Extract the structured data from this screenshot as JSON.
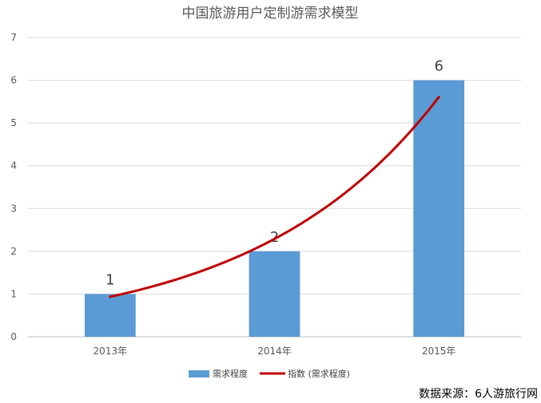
{
  "chart_data": {
    "type": "bar",
    "title": "中国旅游用户定制游需求模型",
    "categories": [
      "2013年",
      "2014年",
      "2015年"
    ],
    "series": [
      {
        "name": "需求程度",
        "type": "bar",
        "values": [
          1,
          2,
          6
        ],
        "color": "#5b9bd5"
      },
      {
        "name": "指数 (需求程度)",
        "type": "line",
        "trend": "exponential",
        "color": "#c00000"
      }
    ],
    "data_labels": [
      "1",
      "2",
      "6"
    ],
    "ylim": [
      0,
      7
    ],
    "yticks": [
      "0",
      "1",
      "2",
      "3",
      "4",
      "5",
      "6",
      "7"
    ],
    "grid": true,
    "legend_position": "bottom"
  },
  "source_text": "数据来源：6人游旅行网"
}
